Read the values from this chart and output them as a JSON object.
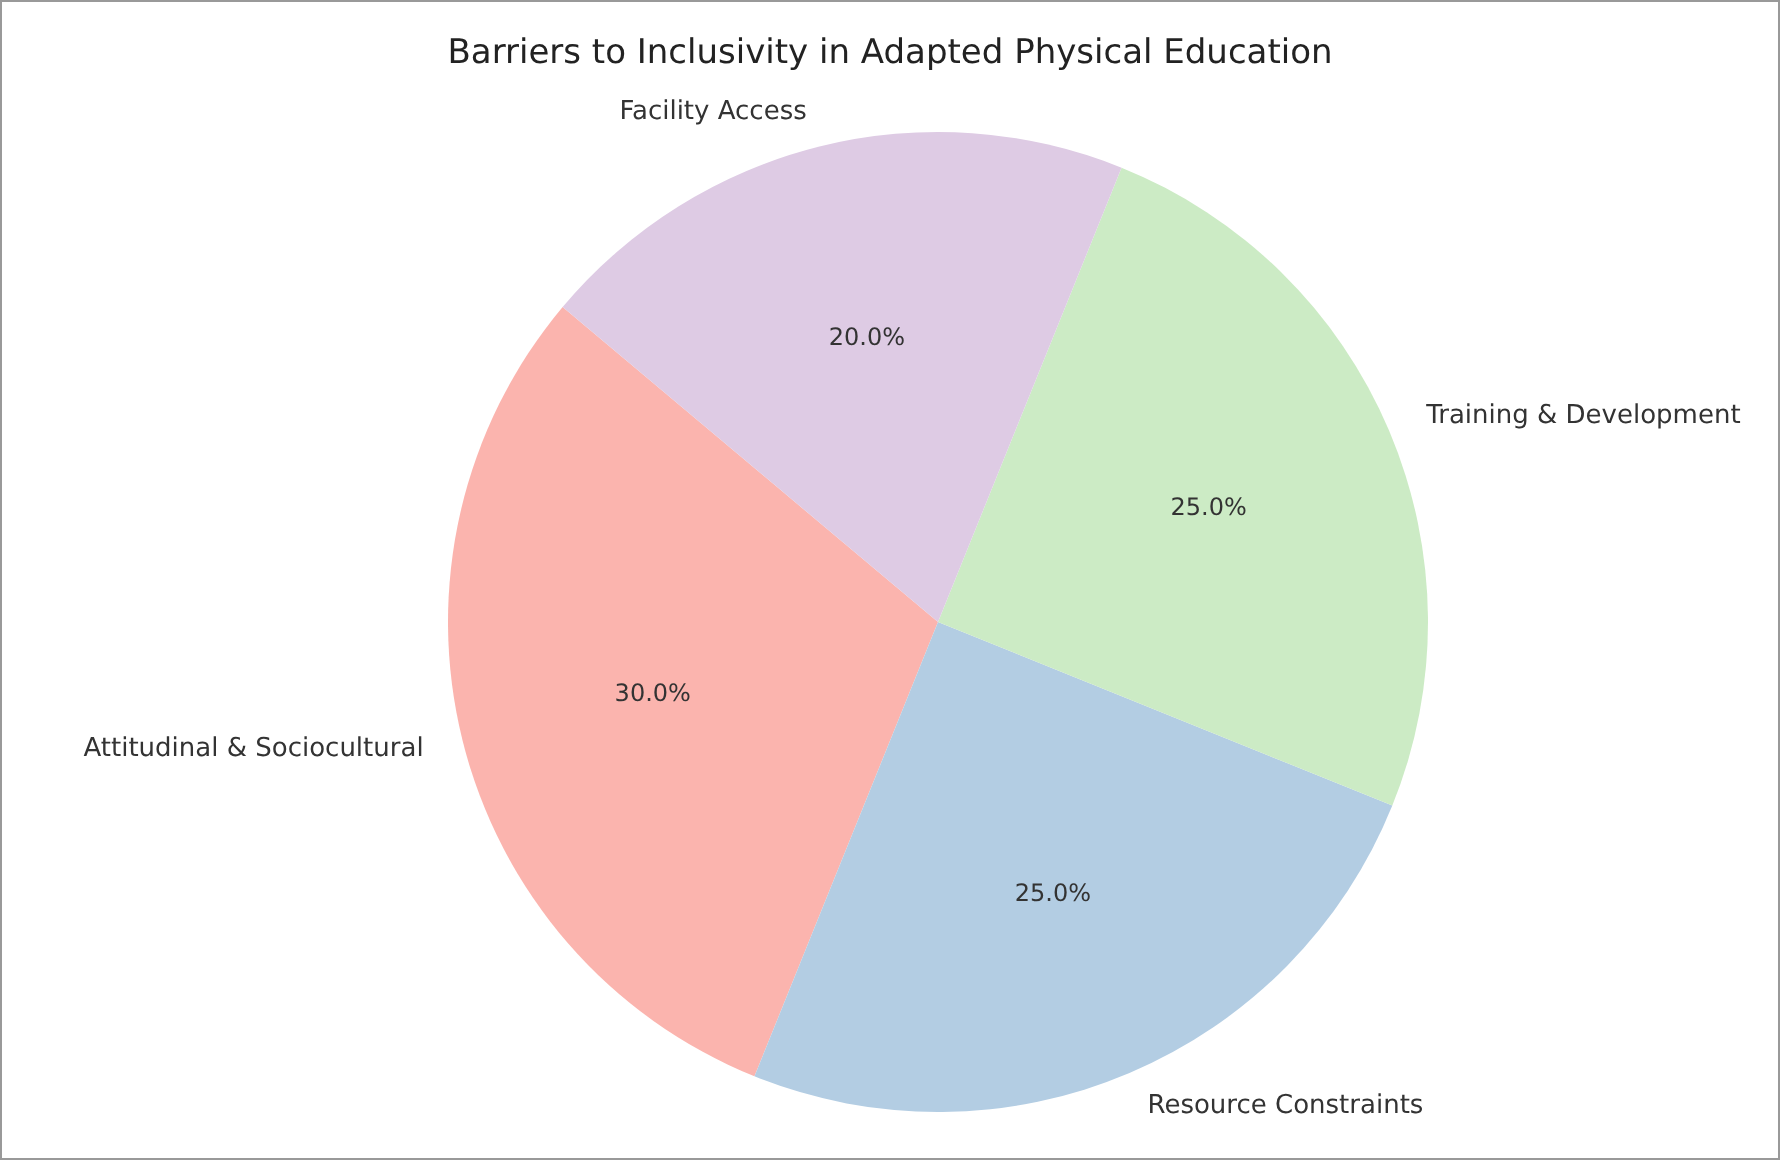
{
  "chart_data": {
    "type": "pie",
    "title": "Barriers to Inclusivity in Adapted Physical Education",
    "categories": [
      "Attitudinal & Sociocultural",
      "Resource Constraints",
      "Training & Development",
      "Facility Access"
    ],
    "values": [
      30,
      25,
      25,
      20
    ],
    "value_labels": [
      "30.0%",
      "25.0%",
      "25.0%",
      "20.0%"
    ],
    "colors": [
      "#fbb4ae",
      "#b3cde3",
      "#ccebc5",
      "#decbe4"
    ],
    "legend": false
  }
}
